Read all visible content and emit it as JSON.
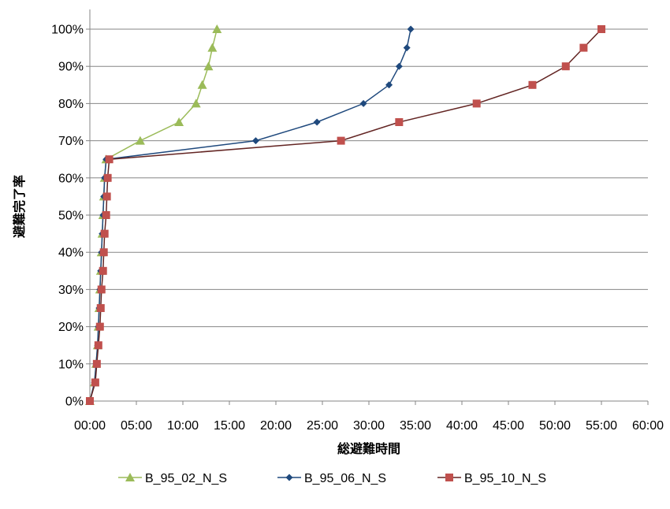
{
  "chart_data": {
    "type": "line",
    "xlabel": "総避難時間",
    "ylabel": "避難完了率",
    "xlim": [
      "00:00",
      "60:00"
    ],
    "ylim": [
      0,
      100
    ],
    "x_ticks": [
      "00:00",
      "05:00",
      "10:00",
      "15:00",
      "20:00",
      "25:00",
      "30:00",
      "35:00",
      "40:00",
      "45:00",
      "50:00",
      "55:00",
      "60:00"
    ],
    "y_ticks": [
      "0%",
      "10%",
      "20%",
      "30%",
      "40%",
      "50%",
      "60%",
      "70%",
      "80%",
      "90%",
      "100%"
    ],
    "grid": "horizontal",
    "legend_position": "bottom",
    "y": [
      0,
      5,
      10,
      15,
      20,
      25,
      30,
      35,
      40,
      45,
      50,
      55,
      60,
      65,
      70,
      75,
      80,
      85,
      90,
      95,
      100
    ],
    "series": [
      {
        "name": "B_95_02_N_S",
        "color": "#9bbb59",
        "marker": "triangle",
        "x": [
          "00:00",
          "00:30",
          "00:40",
          "00:50",
          "00:55",
          "01:00",
          "01:05",
          "01:10",
          "01:15",
          "01:20",
          "01:25",
          "01:30",
          "01:35",
          "01:45",
          "05:25",
          "09:35",
          "11:25",
          "12:05",
          "12:45",
          "13:10",
          "13:40"
        ]
      },
      {
        "name": "B_95_06_N_S",
        "color": "#1f497d",
        "marker": "diamond",
        "x": [
          "00:00",
          "00:30",
          "00:40",
          "00:50",
          "00:55",
          "01:00",
          "01:05",
          "01:10",
          "01:15",
          "01:20",
          "01:25",
          "01:30",
          "01:35",
          "01:45",
          "17:50",
          "24:25",
          "29:25",
          "32:10",
          "33:15",
          "34:05",
          "34:30"
        ]
      },
      {
        "name": "B_95_10_N_S",
        "color": "#c0504d",
        "line_color": "#632523",
        "marker": "square",
        "x": [
          "00:00",
          "00:35",
          "00:45",
          "00:55",
          "01:05",
          "01:10",
          "01:15",
          "01:25",
          "01:30",
          "01:35",
          "01:45",
          "01:50",
          "01:55",
          "02:05",
          "27:00",
          "33:15",
          "41:35",
          "47:35",
          "51:10",
          "53:05",
          "55:00"
        ]
      }
    ]
  }
}
